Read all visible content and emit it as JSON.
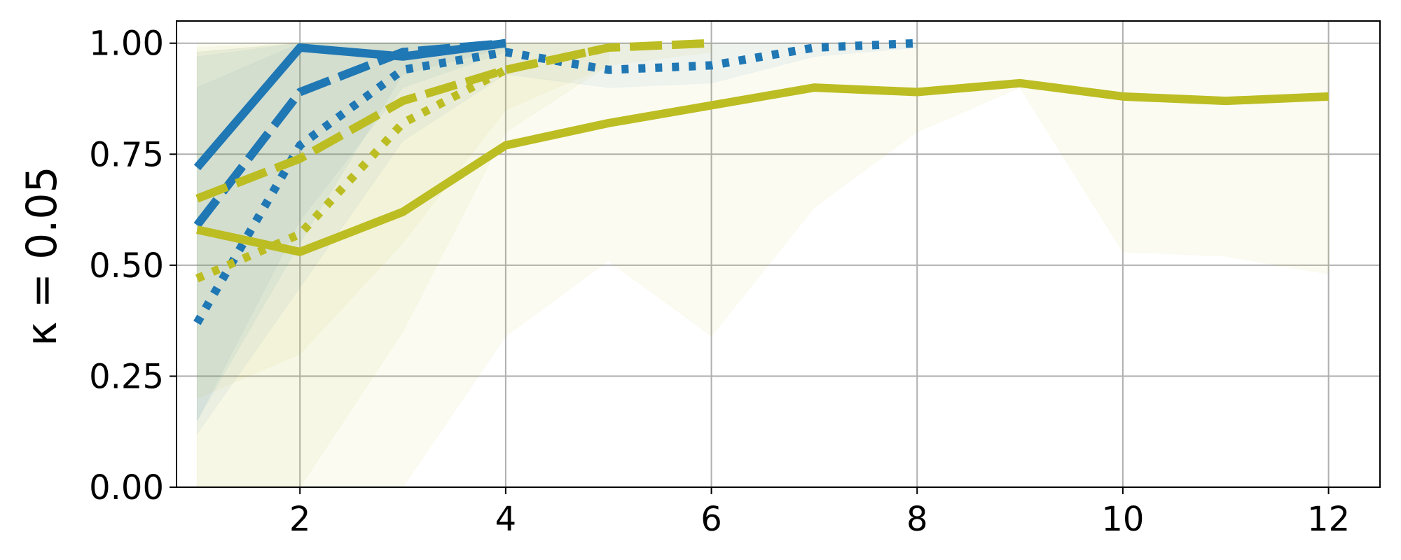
{
  "chart_data": {
    "type": "line",
    "title": "",
    "xlabel": "",
    "ylabel": "κ = 0.05",
    "xlim": [
      0.8,
      12.5
    ],
    "ylim": [
      0.0,
      1.05
    ],
    "xticks": [
      2,
      4,
      6,
      8,
      10,
      12
    ],
    "yticks": [
      0.0,
      0.25,
      0.5,
      0.75,
      1.0
    ],
    "xtick_labels": [
      "2",
      "4",
      "6",
      "8",
      "10",
      "12"
    ],
    "ytick_labels": [
      "0.00",
      "0.25",
      "0.50",
      "0.75",
      "1.00"
    ],
    "grid": true,
    "legend": null,
    "series": [
      {
        "color": "#1f77b4",
        "style": "solid",
        "x": [
          1,
          2,
          3,
          4
        ],
        "y": [
          0.72,
          0.99,
          0.97,
          1.0
        ],
        "band_low": [
          0.15,
          0.55,
          0.93,
          0.99
        ],
        "band_high": [
          0.98,
          1.0,
          1.0,
          1.0
        ]
      },
      {
        "color": "#1f77b4",
        "style": "dashed",
        "x": [
          1,
          2,
          3,
          4
        ],
        "y": [
          0.59,
          0.89,
          0.98,
          1.0
        ],
        "band_low": [
          0.15,
          0.6,
          0.9,
          0.98
        ],
        "band_high": [
          0.97,
          1.0,
          1.0,
          1.0
        ]
      },
      {
        "color": "#1f77b4",
        "style": "dotted",
        "x": [
          1,
          2,
          3,
          4,
          5,
          6,
          7,
          8
        ],
        "y": [
          0.37,
          0.77,
          0.94,
          0.98,
          0.94,
          0.95,
          0.99,
          1.0
        ],
        "band_low": [
          0.12,
          0.45,
          0.78,
          0.93,
          0.9,
          0.91,
          0.97,
          0.99
        ],
        "band_high": [
          0.9,
          1.0,
          1.0,
          1.0,
          1.0,
          1.0,
          1.0,
          1.0
        ]
      },
      {
        "color": "#bcbd22",
        "style": "solid",
        "x": [
          1,
          2,
          3,
          4,
          5,
          6,
          7,
          8,
          9,
          10,
          11,
          12
        ],
        "y": [
          0.58,
          0.53,
          0.62,
          0.77,
          0.82,
          0.86,
          0.9,
          0.89,
          0.91,
          0.88,
          0.87,
          0.88
        ],
        "band_low": [
          0.0,
          0.0,
          0.0,
          0.34,
          0.51,
          0.34,
          0.63,
          0.8,
          0.9,
          0.53,
          0.52,
          0.48
        ],
        "band_high": [
          0.99,
          1.0,
          1.0,
          1.0,
          1.0,
          1.0,
          1.0,
          1.0,
          1.0,
          1.0,
          1.0,
          1.0
        ]
      },
      {
        "color": "#bcbd22",
        "style": "dashed",
        "x": [
          1,
          2,
          3,
          4,
          5,
          6
        ],
        "y": [
          0.65,
          0.74,
          0.87,
          0.94,
          0.99,
          1.0
        ],
        "band_low": [
          0.2,
          0.3,
          0.55,
          0.85,
          0.95,
          0.98
        ],
        "band_high": [
          1.0,
          1.0,
          1.0,
          1.0,
          1.0,
          1.0
        ]
      },
      {
        "color": "#bcbd22",
        "style": "dotted",
        "x": [
          1,
          2,
          3,
          4,
          5
        ],
        "y": [
          0.47,
          0.57,
          0.82,
          0.94,
          0.99
        ],
        "band_low": [
          0.0,
          0.0,
          0.35,
          0.8,
          0.95
        ],
        "band_high": [
          0.98,
          1.0,
          1.0,
          1.0,
          1.0
        ]
      }
    ]
  }
}
